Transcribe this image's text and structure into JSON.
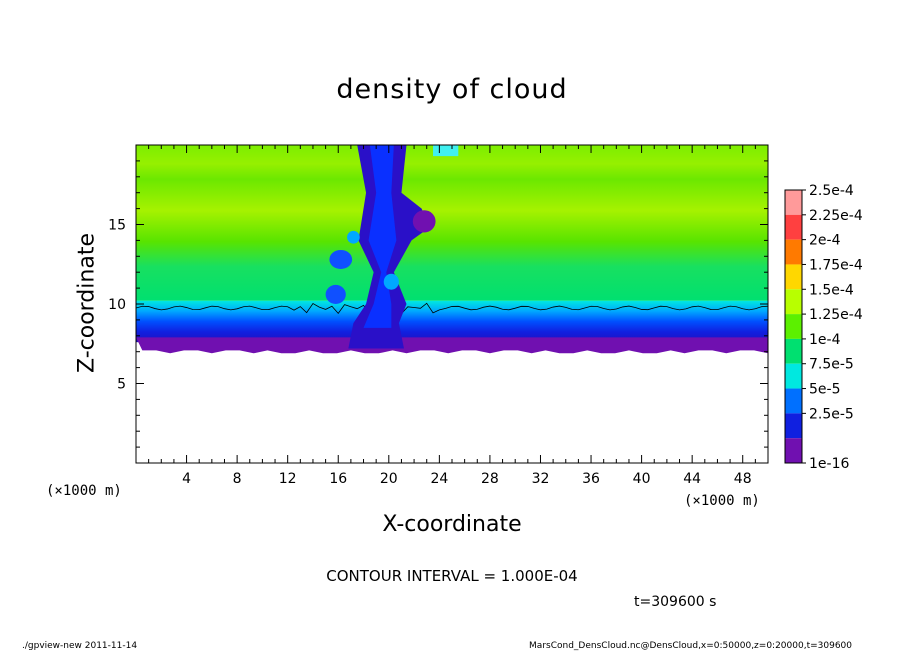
{
  "chart_data": {
    "type": "heatmap",
    "title": "density of cloud",
    "xlabel": "X-coordinate",
    "ylabel": "Z-coordinate",
    "x_unit": "(×1000 m)",
    "y_unit": "(×1000 m)",
    "xlim": [
      0,
      50
    ],
    "ylim": [
      0,
      20
    ],
    "x_ticks": [
      4,
      8,
      12,
      16,
      20,
      24,
      28,
      32,
      36,
      40,
      44,
      48
    ],
    "y_ticks": [
      5,
      10,
      15
    ],
    "colorbar": {
      "labels": [
        "2.5e-4",
        "2.25e-4",
        "2e-4",
        "1.75e-4",
        "1.5e-4",
        "1.25e-4",
        "1e-4",
        "7.5e-5",
        "5e-5",
        "2.5e-5",
        "1e-16"
      ],
      "levels": [
        0.00025,
        0.000225,
        0.0002,
        0.000175,
        0.00015,
        0.000125,
        0.0001,
        7.5e-05,
        5e-05,
        2.5e-05,
        1e-16
      ],
      "colors": [
        "#ff9a9a",
        "#ff4040",
        "#ff7a00",
        "#ffd700",
        "#b8ff00",
        "#5cf000",
        "#00e070",
        "#00e8e0",
        "#0070ff",
        "#1020e0",
        "#7010b0"
      ]
    },
    "contour_interval": "CONTOUR INTERVAL = 1.000E-04",
    "time": "t=309600 s",
    "colors": {
      "background": "#ffffff",
      "no_cloud": "#ffffff",
      "cloud_base": "#7010b0",
      "main_layer": "#5ce800"
    }
  },
  "footer": {
    "left": "./gpview-new  2011-11-14",
    "right": "MarsCond_DensCloud.nc@DensCloud,x=0:50000,z=0:20000,t=309600"
  }
}
